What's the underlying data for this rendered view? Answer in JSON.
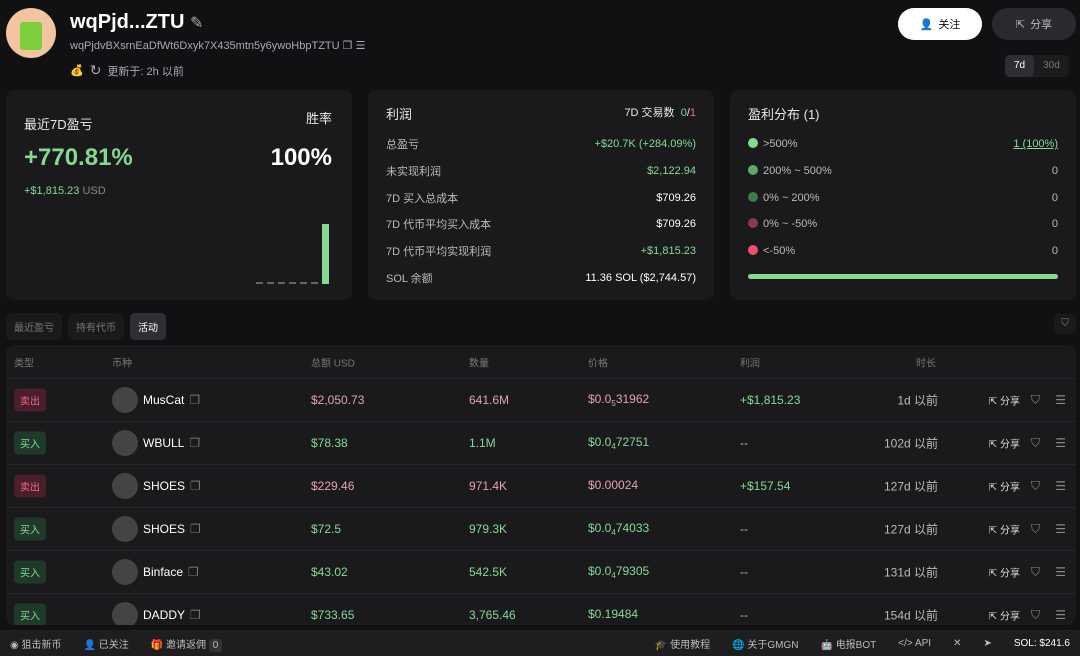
{
  "header": {
    "name": "wqPjd...ZTU",
    "address": "wqPjdvBXsrnEaDfWt6Dxyk7X435mtn5y6ywoHbpTZTU",
    "updated": "更新于: 2h 以前",
    "follow": "关注",
    "share": "分享",
    "periods": [
      "7d",
      "30d"
    ]
  },
  "pnl": {
    "title": "最近7D盈亏",
    "winrate_label": "胜率",
    "pct": "+770.81%",
    "winrate": "100%",
    "usd": "+$1,815.23",
    "unit": "USD",
    "bars": [
      0,
      0,
      0,
      0,
      0,
      0,
      1
    ]
  },
  "profit": {
    "title": "利润",
    "trades_label": "7D 交易数",
    "trades_win": "0",
    "trades_total": "1",
    "rows": [
      {
        "k": "总盈亏",
        "v": "+$20.7K (+284.09%)",
        "c": "green"
      },
      {
        "k": "未实现利润",
        "v": "$2,122.94",
        "c": "green"
      },
      {
        "k": "7D 买入总成本",
        "v": "$709.26",
        "c": ""
      },
      {
        "k": "7D 代币平均买入成本",
        "v": "$709.26",
        "c": ""
      },
      {
        "k": "7D 代币平均实现利润",
        "v": "+$1,815.23",
        "c": "green"
      },
      {
        "k": "SOL 余额",
        "v": "11.36 SOL ($2,744.57)",
        "c": ""
      }
    ]
  },
  "dist": {
    "title": "盈利分布 (1)",
    "rows": [
      {
        "k": ">500%",
        "v": "1 (100%)",
        "color": "#86d993"
      },
      {
        "k": "200% ~ 500%",
        "v": "0",
        "color": "#5fa86a"
      },
      {
        "k": "0% ~ 200%",
        "v": "0",
        "color": "#3f7a4a"
      },
      {
        "k": "0% ~ -50%",
        "v": "0",
        "color": "#8a3a4c"
      },
      {
        "k": "<-50%",
        "v": "0",
        "color": "#f0506e"
      }
    ],
    "fill": 1.0
  },
  "tabs": [
    "最近盈亏",
    "持有代币",
    "活动"
  ],
  "table": {
    "headers": [
      "类型",
      "币种",
      "总额  USD",
      "数量",
      "价格",
      "利润",
      "时长"
    ],
    "share": "分享",
    "rows": [
      {
        "type": "卖出",
        "side": "sell",
        "token": "MusCat",
        "total": "$2,050.73",
        "qty": "641.6M",
        "p0": "$0.0",
        "ps": "5",
        "p1": "31962",
        "profit": "+$1,815.23",
        "age": "1d 以前"
      },
      {
        "type": "买入",
        "side": "buy",
        "token": "WBULL",
        "total": "$78.38",
        "qty": "1.1M",
        "p0": "$0.0",
        "ps": "4",
        "p1": "72751",
        "profit": "--",
        "age": "102d 以前"
      },
      {
        "type": "卖出",
        "side": "sell",
        "token": "SHOES",
        "total": "$229.46",
        "qty": "971.4K",
        "p0": "$0.00024",
        "ps": "",
        "p1": "",
        "profit": "+$157.54",
        "age": "127d 以前"
      },
      {
        "type": "买入",
        "side": "buy",
        "token": "SHOES",
        "total": "$72.5",
        "qty": "979.3K",
        "p0": "$0.0",
        "ps": "4",
        "p1": "74033",
        "profit": "--",
        "age": "127d 以前"
      },
      {
        "type": "买入",
        "side": "buy",
        "token": "Binface",
        "total": "$43.02",
        "qty": "542.5K",
        "p0": "$0.0",
        "ps": "4",
        "p1": "79305",
        "profit": "--",
        "age": "131d 以前"
      },
      {
        "type": "买入",
        "side": "buy",
        "token": "DADDY",
        "total": "$733.65",
        "qty": "3,765.46",
        "p0": "$0.19484",
        "ps": "",
        "p1": "",
        "profit": "--",
        "age": "154d 以前"
      }
    ]
  },
  "footer": {
    "snipe": "狙击新币",
    "followed": "已关注",
    "invite": "邀请返佣",
    "invite_count": "0",
    "tutorial": "使用教程",
    "about": "关于GMGN",
    "bot": "电报BOT",
    "api": "API",
    "sol": "SOL: $241.6"
  }
}
